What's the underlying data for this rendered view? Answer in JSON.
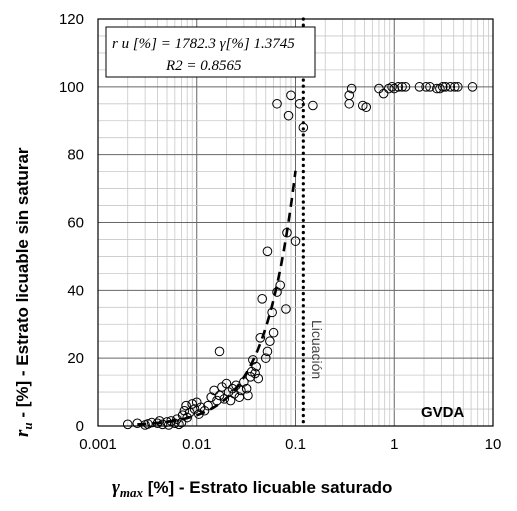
{
  "chart_data": {
    "type": "scatter",
    "x_scale": "log",
    "xlim": [
      0.001,
      10
    ],
    "ylim": [
      0,
      120
    ],
    "x_tick_labels": [
      "0.001",
      "0.01",
      "0.1",
      "1",
      "10"
    ],
    "y_tick_labels": [
      "0",
      "20",
      "40",
      "60",
      "80",
      "100",
      "120"
    ],
    "grid": true,
    "xlabel_symbol": "γ",
    "xlabel_symbol_sub": "max",
    "xlabel_text": " [%] - Estrato licuable saturado",
    "ylabel_symbol": "r",
    "ylabel_symbol_sub": "u",
    "ylabel_text": " - [%] - Estrato licuable sin saturar",
    "equation_line1": "r u [%] = 1782.3 γ[%] 1.3745",
    "equation_line2": "R2 = 0.8565",
    "site_label": "GVDA",
    "liquefaction_label": "Licuación",
    "liquefaction_x": 0.12,
    "fit": {
      "a": 1782.3,
      "b": 1.3745,
      "x_range": [
        0.0025,
        0.1
      ]
    },
    "points": [
      [
        0.002,
        0.5
      ],
      [
        0.0025,
        0.8
      ],
      [
        0.003,
        0.3
      ],
      [
        0.0032,
        0.6
      ],
      [
        0.0035,
        1.0
      ],
      [
        0.004,
        0.8
      ],
      [
        0.0042,
        1.5
      ],
      [
        0.0045,
        0.5
      ],
      [
        0.005,
        1.2
      ],
      [
        0.0052,
        0.3
      ],
      [
        0.0055,
        1.5
      ],
      [
        0.006,
        0.8
      ],
      [
        0.0063,
        2.0
      ],
      [
        0.0066,
        0.5
      ],
      [
        0.007,
        1.0
      ],
      [
        0.0072,
        3.2
      ],
      [
        0.0075,
        4.5
      ],
      [
        0.0078,
        6.0
      ],
      [
        0.008,
        2.5
      ],
      [
        0.0085,
        4.0
      ],
      [
        0.009,
        6.5
      ],
      [
        0.0095,
        5.0
      ],
      [
        0.01,
        7.0
      ],
      [
        0.0105,
        3.5
      ],
      [
        0.011,
        5.5
      ],
      [
        0.012,
        4.5
      ],
      [
        0.013,
        6.0
      ],
      [
        0.014,
        8.5
      ],
      [
        0.015,
        10.5
      ],
      [
        0.016,
        7.5
      ],
      [
        0.017,
        9.0
      ],
      [
        0.018,
        11.5
      ],
      [
        0.019,
        8.0
      ],
      [
        0.02,
        12.5
      ],
      [
        0.021,
        10.0
      ],
      [
        0.022,
        7.5
      ],
      [
        0.023,
        11.0
      ],
      [
        0.024,
        9.5
      ],
      [
        0.025,
        12.0
      ],
      [
        0.027,
        8.5
      ],
      [
        0.028,
        10.5
      ],
      [
        0.03,
        13.0
      ],
      [
        0.032,
        11.0
      ],
      [
        0.033,
        9.0
      ],
      [
        0.035,
        14.5
      ],
      [
        0.036,
        16.0
      ],
      [
        0.037,
        19.5
      ],
      [
        0.039,
        15.5
      ],
      [
        0.04,
        17.5
      ],
      [
        0.042,
        14.0
      ],
      [
        0.044,
        26.0
      ],
      [
        0.046,
        37.5
      ],
      [
        0.05,
        20.0
      ],
      [
        0.052,
        22.0
      ],
      [
        0.055,
        25.0
      ],
      [
        0.058,
        33.5
      ],
      [
        0.06,
        27.5
      ],
      [
        0.065,
        39.5
      ],
      [
        0.07,
        41.5
      ],
      [
        0.08,
        34.5
      ],
      [
        0.082,
        57.0
      ],
      [
        0.052,
        51.5
      ],
      [
        0.1,
        54.5
      ],
      [
        0.065,
        95.0
      ],
      [
        0.085,
        91.5
      ],
      [
        0.09,
        97.5
      ],
      [
        0.11,
        95.0
      ],
      [
        0.12,
        88.0
      ],
      [
        0.15,
        94.5
      ],
      [
        0.017,
        22.0
      ],
      [
        0.35,
        95.0
      ],
      [
        0.35,
        97.5
      ],
      [
        0.37,
        99.5
      ],
      [
        0.48,
        94.5
      ],
      [
        0.52,
        94.0
      ],
      [
        0.7,
        99.5
      ],
      [
        0.78,
        98.0
      ],
      [
        0.88,
        99.5
      ],
      [
        0.95,
        100.0
      ],
      [
        1.0,
        99.5
      ],
      [
        1.1,
        100.0
      ],
      [
        1.2,
        100.0
      ],
      [
        1.3,
        100.0
      ],
      [
        1.8,
        100.0
      ],
      [
        2.1,
        100.0
      ],
      [
        2.3,
        100.0
      ],
      [
        2.7,
        99.5
      ],
      [
        2.9,
        99.5
      ],
      [
        3.1,
        100.0
      ],
      [
        3.3,
        100.0
      ],
      [
        3.7,
        100.0
      ],
      [
        4.1,
        100.0
      ],
      [
        4.4,
        100.0
      ],
      [
        6.2,
        100.0
      ]
    ]
  }
}
